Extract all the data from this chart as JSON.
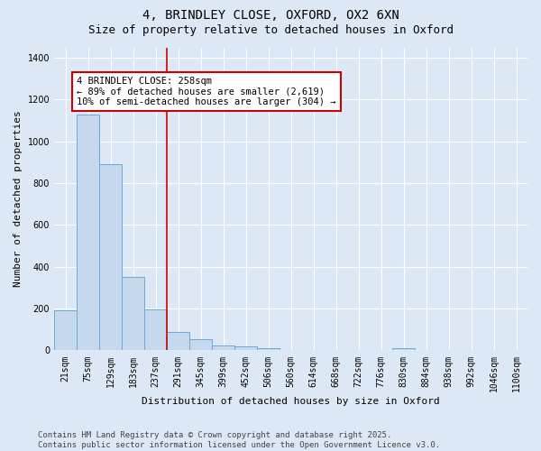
{
  "title_line1": "4, BRINDLEY CLOSE, OXFORD, OX2 6XN",
  "title_line2": "Size of property relative to detached houses in Oxford",
  "xlabel": "Distribution of detached houses by size in Oxford",
  "ylabel": "Number of detached properties",
  "bin_labels": [
    "21sqm",
    "75sqm",
    "129sqm",
    "183sqm",
    "237sqm",
    "291sqm",
    "345sqm",
    "399sqm",
    "452sqm",
    "506sqm",
    "560sqm",
    "614sqm",
    "668sqm",
    "722sqm",
    "776sqm",
    "830sqm",
    "884sqm",
    "938sqm",
    "992sqm",
    "1046sqm",
    "1100sqm"
  ],
  "bar_values": [
    190,
    1130,
    890,
    350,
    195,
    90,
    55,
    25,
    20,
    12,
    0,
    0,
    0,
    0,
    0,
    12,
    0,
    0,
    0,
    0,
    0
  ],
  "bar_color": "#c5d8ed",
  "bar_edge_color": "#6aaad4",
  "background_color": "#dce8f5",
  "grid_color": "#ffffff",
  "vline_x": 4.5,
  "vline_color": "#cc0000",
  "annotation_text": "4 BRINDLEY CLOSE: 258sqm\n← 89% of detached houses are smaller (2,619)\n10% of semi-detached houses are larger (304) →",
  "annotation_box_color": "#ffffff",
  "annotation_box_edge": "#cc0000",
  "ylim": [
    0,
    1450
  ],
  "yticks": [
    0,
    200,
    400,
    600,
    800,
    1000,
    1200,
    1400
  ],
  "footer_line1": "Contains HM Land Registry data © Crown copyright and database right 2025.",
  "footer_line2": "Contains public sector information licensed under the Open Government Licence v3.0.",
  "title1_fontsize": 10,
  "title2_fontsize": 9,
  "annotation_fontsize": 7.5,
  "footer_fontsize": 6.5,
  "axis_label_fontsize": 8,
  "tick_fontsize": 7,
  "ylabel_fontsize": 8
}
